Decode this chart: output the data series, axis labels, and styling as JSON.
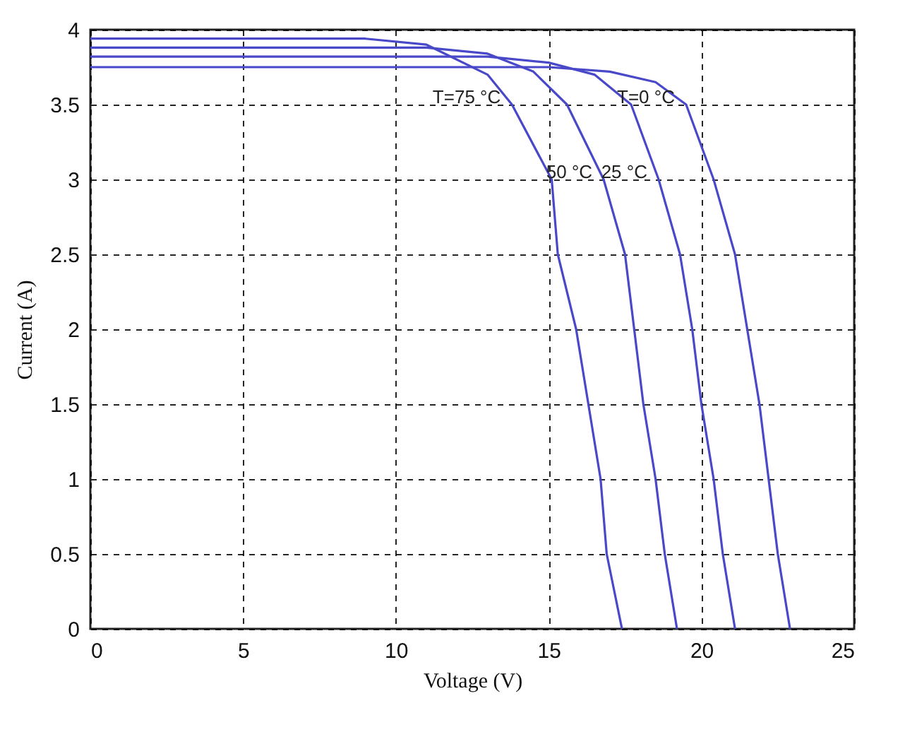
{
  "chart_data": {
    "type": "line",
    "xlabel": "Voltage (V)",
    "ylabel": "Current (A)",
    "xlim": [
      0,
      25
    ],
    "ylim": [
      0,
      4
    ],
    "xticks": [
      0,
      5,
      10,
      15,
      20,
      25
    ],
    "yticks": [
      0,
      0.5,
      1,
      1.5,
      2,
      2.5,
      3,
      3.5,
      4
    ],
    "grid": true,
    "marker": "none",
    "line_style": "solid",
    "series": [
      {
        "color": "#4848c8",
        "x": [
          0,
          15,
          17,
          18.5,
          19.5,
          20.4,
          21.1,
          21.5,
          21.9,
          22.2,
          22.5,
          22.9
        ],
        "values": [
          3.75,
          3.75,
          3.72,
          3.65,
          3.5,
          3,
          2.5,
          2,
          1.5,
          1,
          0.5,
          0
        ]
      },
      {
        "color": "#4848c8",
        "x": [
          0,
          13,
          15,
          16.5,
          17.7,
          18.6,
          19.3,
          19.7,
          20,
          20.4,
          20.7,
          21.1
        ],
        "values": [
          3.82,
          3.82,
          3.78,
          3.7,
          3.5,
          3,
          2.5,
          2,
          1.5,
          1,
          0.5,
          0
        ]
      },
      {
        "color": "#4848c8",
        "x": [
          0,
          11,
          13,
          14.5,
          15.6,
          16.8,
          17.5,
          17.8,
          18.1,
          18.5,
          18.8,
          19.2
        ],
        "values": [
          3.88,
          3.88,
          3.84,
          3.72,
          3.5,
          3,
          2.5,
          2,
          1.5,
          1,
          0.5,
          0
        ]
      },
      {
        "color": "#4848c8",
        "x": [
          0,
          9,
          11,
          13,
          13.8,
          15.1,
          15.3,
          15.9,
          16.3,
          16.7,
          16.9,
          17.4
        ],
        "values": [
          3.94,
          3.94,
          3.9,
          3.7,
          3.5,
          3,
          2.5,
          2,
          1.5,
          1,
          0.5,
          0
        ]
      }
    ],
    "annotations": [
      {
        "text": "T=0 °C",
        "x": 19.5,
        "y": 3.5
      },
      {
        "text": "25 °C",
        "x": 18.6,
        "y": 3
      },
      {
        "text": "50 °C",
        "x": 16.8,
        "y": 3
      },
      {
        "text": "T=75 °C",
        "x": 13.8,
        "y": 3.5
      }
    ]
  }
}
